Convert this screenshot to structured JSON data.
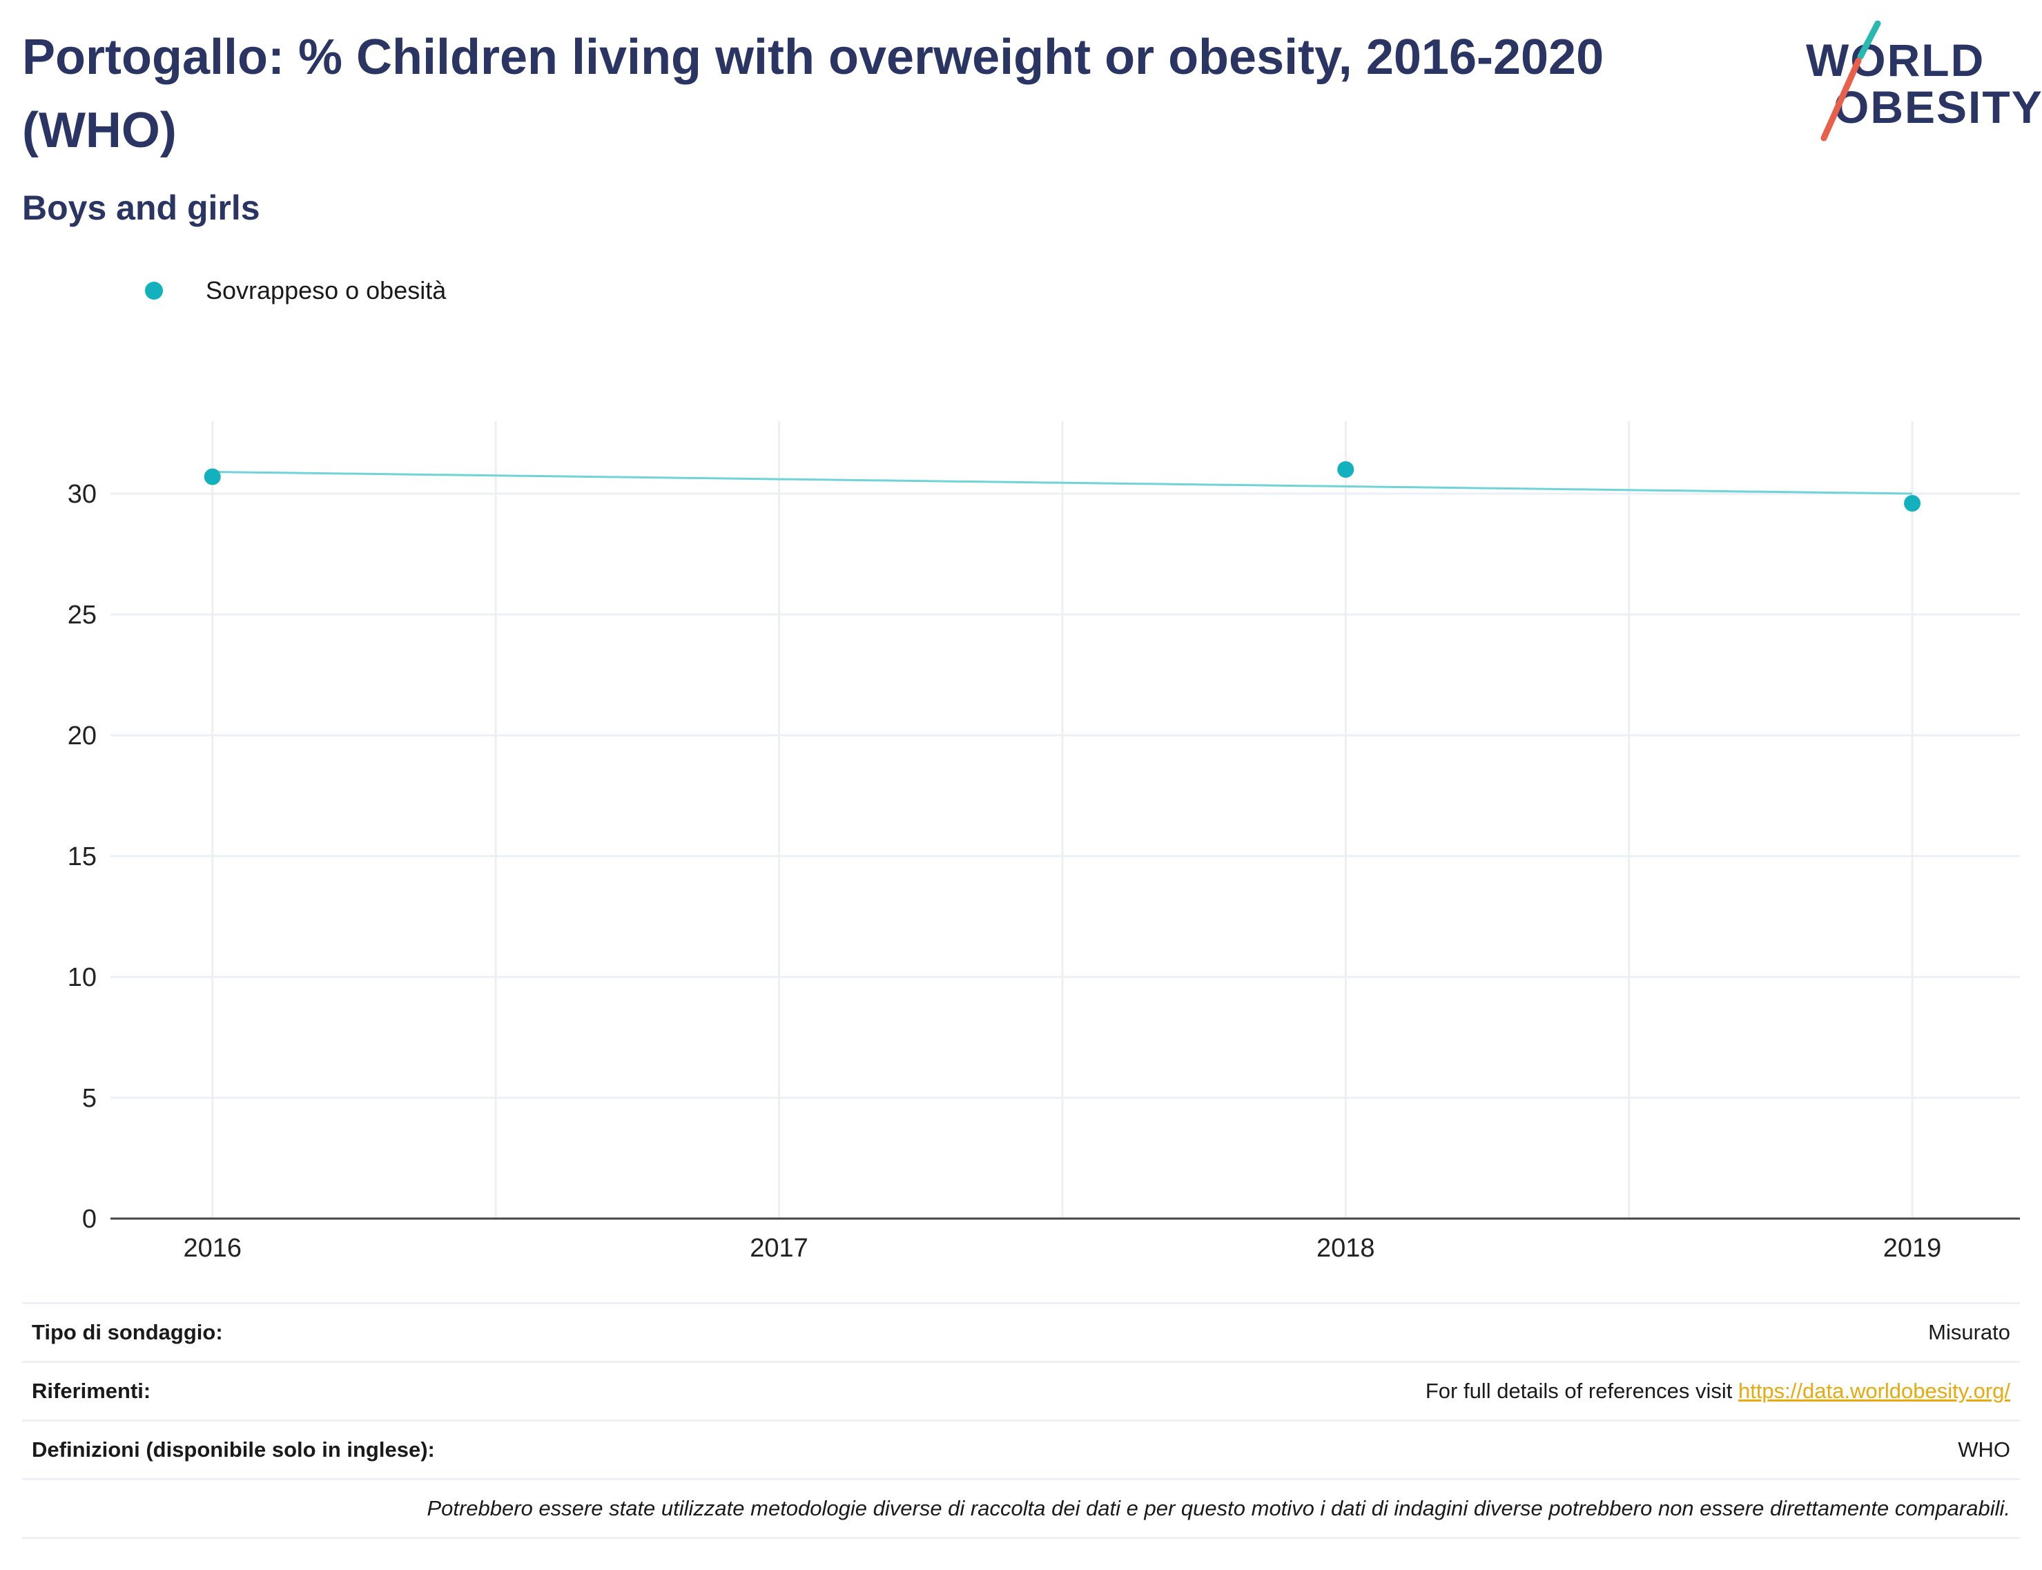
{
  "header": {
    "title": "Portogallo: % Children living with overweight or obesity, 2016-2020 (WHO)",
    "subtitle": "Boys and girls"
  },
  "logo": {
    "line1": "WORLD",
    "line2": "OBESITY",
    "colors": {
      "text": "#2a3563",
      "slash_top": "#2ab8b0",
      "slash_bottom": "#e8604c"
    }
  },
  "legend": {
    "label": "Sovrappeso o obesità",
    "color": "#13b1bd"
  },
  "chart_data": {
    "type": "scatter",
    "x": [
      2016,
      2018,
      2019
    ],
    "series": [
      {
        "name": "Sovrappeso o obesità",
        "x": [
          2016,
          2018,
          2019
        ],
        "values": [
          30.7,
          31.0,
          29.6
        ],
        "color": "#13b1bd"
      }
    ],
    "trendline": {
      "x": [
        2016,
        2019
      ],
      "values": [
        30.9,
        30.0
      ],
      "color": "#6fd3d8"
    },
    "xticks": [
      "2016",
      "2017",
      "2018",
      "2019"
    ],
    "yticks": [
      "0",
      "5",
      "10",
      "15",
      "20",
      "25",
      "30"
    ],
    "xlim": [
      2015.82,
      2019.19
    ],
    "ylim": [
      0,
      33
    ],
    "grid": true,
    "title": "",
    "xlabel": "",
    "ylabel": ""
  },
  "info": {
    "survey_type_label": "Tipo di sondaggio:",
    "survey_type_value": "Misurato",
    "references_label": "Riferimenti:",
    "references_text": "For full details of references visit ",
    "references_link": "https://data.worldobesity.org/",
    "definitions_label": "Definizioni (disponibile solo in inglese):",
    "definitions_value": "WHO",
    "note": "Potrebbero essere state utilizzate metodologie diverse di raccolta dei dati e per questo motivo i dati di indagini diverse potrebbero non essere direttamente comparabili."
  }
}
